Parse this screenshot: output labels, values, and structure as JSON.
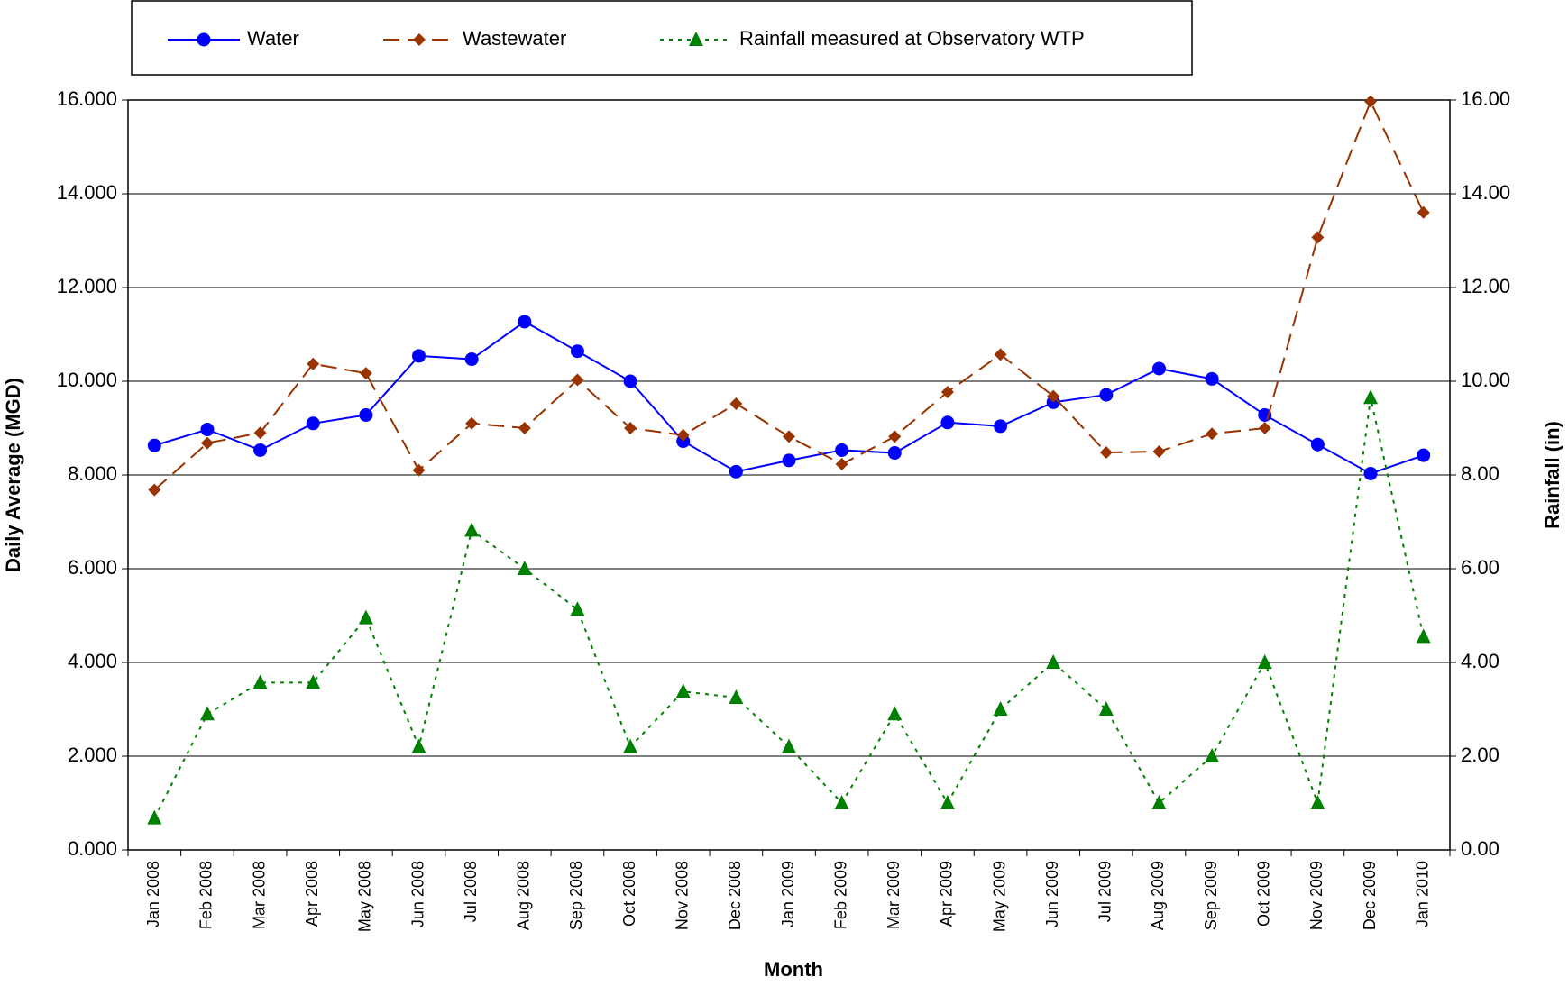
{
  "chart_data": {
    "type": "line",
    "xlabel": "Month",
    "ylabel": "Daily Average (MGD)",
    "y2label": "Rainfall (in)",
    "categories": [
      "Jan 2008",
      "Feb 2008",
      "Mar 2008",
      "Apr 2008",
      "May 2008",
      "Jun 2008",
      "Jul 2008",
      "Aug 2008",
      "Sep 2008",
      "Oct 2008",
      "Nov 2008",
      "Dec 2008",
      "Jan 2009",
      "Feb 2009",
      "Mar 2009",
      "Apr 2009",
      "May 2009",
      "Jun 2009",
      "Jul 2009",
      "Aug 2009",
      "Sep 2009",
      "Oct 2009",
      "Nov 2009",
      "Dec 2009",
      "Jan 2010"
    ],
    "series": [
      {
        "name": "Water",
        "color": "#0000ff",
        "marker": "circle",
        "dash": "solid",
        "values": [
          8.63,
          8.97,
          8.53,
          9.1,
          9.28,
          10.54,
          10.47,
          11.27,
          10.64,
          10.0,
          8.72,
          8.07,
          8.31,
          8.53,
          8.47,
          9.12,
          9.04,
          9.55,
          9.71,
          10.27,
          10.05,
          9.28,
          8.65,
          8.03,
          8.42
        ]
      },
      {
        "name": "Wastewater",
        "color": "#993300",
        "marker": "diamond",
        "dash": "dashed",
        "values": [
          7.68,
          8.68,
          8.9,
          10.37,
          10.17,
          8.1,
          9.1,
          9.0,
          10.03,
          9.0,
          8.85,
          9.52,
          8.82,
          8.23,
          8.82,
          9.77,
          10.57,
          9.68,
          8.48,
          8.5,
          8.88,
          9.0,
          13.07,
          15.97,
          13.6
        ]
      },
      {
        "name": "Rainfall measured at Observatory WTP",
        "color": "#008000",
        "marker": "triangle",
        "dash": "dotted",
        "axis": "y2",
        "values": [
          0.68,
          2.9,
          3.57,
          3.57,
          4.95,
          2.2,
          6.82,
          6.0,
          5.13,
          2.2,
          3.38,
          3.25,
          2.2,
          1.0,
          2.9,
          1.0,
          3.0,
          4.0,
          3.0,
          1.0,
          2.0,
          4.0,
          1.0,
          9.65,
          4.55
        ]
      }
    ],
    "ylim": [
      0,
      16
    ],
    "yticks": [
      {
        "value": 0,
        "label": "0.000"
      },
      {
        "value": 2,
        "label": "2.000"
      },
      {
        "value": 4,
        "label": "4.000"
      },
      {
        "value": 6,
        "label": "6.000"
      },
      {
        "value": 8,
        "label": "8.000"
      },
      {
        "value": 10,
        "label": "10.000"
      },
      {
        "value": 12,
        "label": "12.000"
      },
      {
        "value": 14,
        "label": "14.000"
      },
      {
        "value": 16,
        "label": "16.000"
      }
    ],
    "y2lim": [
      0,
      16
    ],
    "y2ticks": [
      {
        "value": 0,
        "label": "0.00"
      },
      {
        "value": 2,
        "label": "2.00"
      },
      {
        "value": 4,
        "label": "4.00"
      },
      {
        "value": 6,
        "label": "6.00"
      },
      {
        "value": 8,
        "label": "8.00"
      },
      {
        "value": 10,
        "label": "10.00"
      },
      {
        "value": 12,
        "label": "12.00"
      },
      {
        "value": 14,
        "label": "14.00"
      },
      {
        "value": 16,
        "label": "16.00"
      }
    ],
    "grid": true,
    "legend": "top"
  }
}
